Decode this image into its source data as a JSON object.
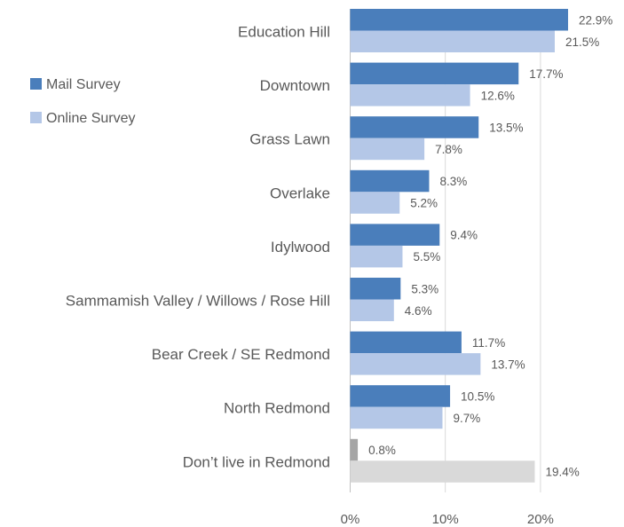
{
  "chart_data": {
    "type": "bar",
    "orientation": "horizontal",
    "title": "",
    "xlabel": "",
    "ylabel": "",
    "xlim": [
      0,
      25
    ],
    "ticks": [
      0,
      10,
      20
    ],
    "tick_labels": [
      "0%",
      "10%",
      "20%"
    ],
    "grid": "vertical",
    "legend_position": "left",
    "categories": [
      "Education Hill",
      "Downtown",
      "Grass Lawn",
      "Overlake",
      "Idylwood",
      "Sammamish Valley / Willows / Rose Hill",
      "Bear Creek / SE Redmond",
      "North Redmond",
      "Don’t live in Redmond"
    ],
    "series": [
      {
        "name": "Mail Survey",
        "color": "#4a7ebb",
        "values": [
          22.9,
          17.7,
          13.5,
          8.3,
          9.4,
          5.3,
          11.7,
          10.5,
          0.8
        ],
        "labels": [
          "22.9%",
          "17.7%",
          "13.5%",
          "8.3%",
          "9.4%",
          "5.3%",
          "11.7%",
          "10.5%",
          "0.8%"
        ]
      },
      {
        "name": "Online Survey",
        "color": "#b4c7e7",
        "values": [
          21.5,
          12.6,
          7.8,
          5.2,
          5.5,
          4.6,
          13.7,
          9.7,
          19.4
        ],
        "labels": [
          "21.5%",
          "12.6%",
          "7.8%",
          "5.2%",
          "5.5%",
          "4.6%",
          "13.7%",
          "9.7%",
          "19.4%"
        ]
      }
    ],
    "highlight": {
      "category_index": 8,
      "colors": [
        "#a5a5a5",
        "#d9d9d9"
      ]
    },
    "legend": [
      {
        "label": "Mail Survey",
        "color": "#4a7ebb"
      },
      {
        "label": "Online Survey",
        "color": "#b4c7e7"
      }
    ]
  }
}
